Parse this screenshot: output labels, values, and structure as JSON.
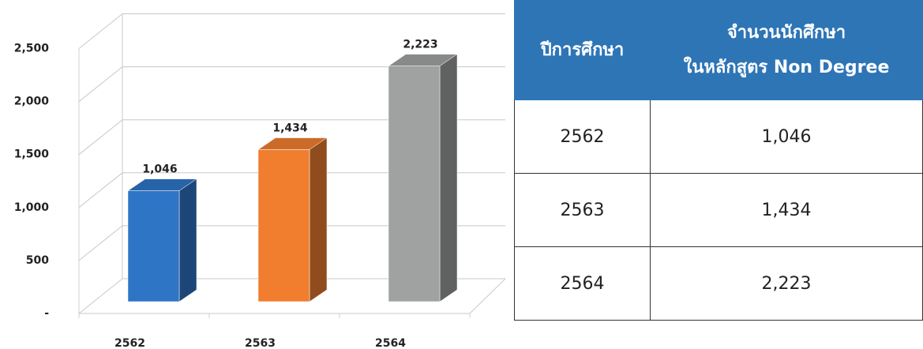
{
  "chart_data": {
    "type": "bar3d",
    "categories": [
      "2562",
      "2563",
      "2564"
    ],
    "values": [
      1046,
      1434,
      2223
    ],
    "value_labels": [
      "1,046",
      "1,434",
      "2,223"
    ],
    "colors": [
      "#2e75c6",
      "#f07e2e",
      "#a0a2a2"
    ],
    "ylim": [
      0,
      2500
    ],
    "yticks": [
      {
        "value": 0,
        "label": "-"
      },
      500,
      {
        "value": 1000,
        "label": "1,000"
      },
      {
        "value": 1500,
        "label": "1,500"
      },
      {
        "value": 2000,
        "label": "2,000"
      },
      {
        "value": 2500,
        "label": "2,500"
      }
    ],
    "grid": true
  },
  "table": {
    "header": [
      "ปีการศึกษา",
      [
        "จำนวนนักศึกษา",
        "ในหลักสูตร Non Degree"
      ]
    ],
    "rows": [
      [
        "2562",
        "1,046"
      ],
      [
        "2563",
        "1,434"
      ],
      [
        "2564",
        "2,223"
      ]
    ]
  }
}
